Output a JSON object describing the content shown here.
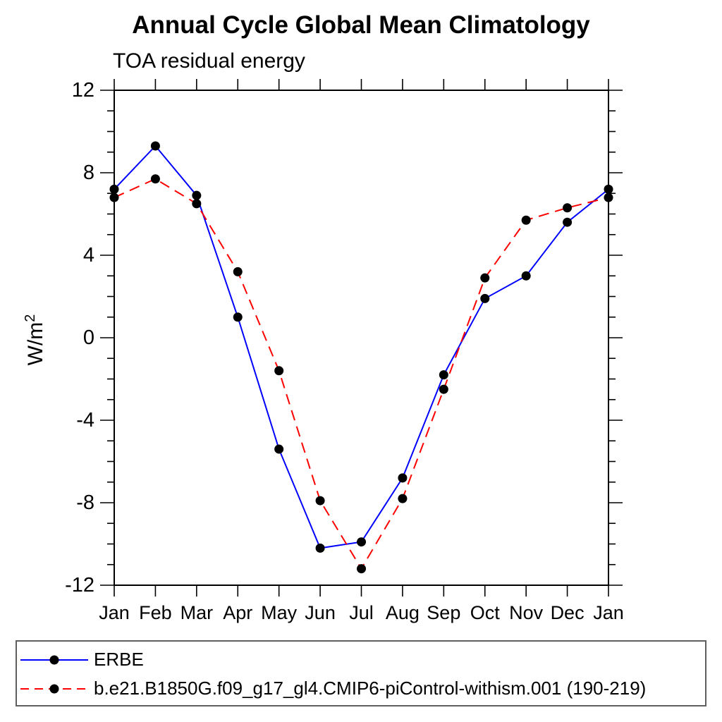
{
  "figure": {
    "background": "#ffffff"
  },
  "chart_data": {
    "type": "line",
    "title": "Annual Cycle Global Mean Climatology",
    "subtitle": "TOA residual energy",
    "ylabel": {
      "base": "W/m",
      "superscript": "2"
    },
    "x_tick_labels": [
      "Jan",
      "Feb",
      "Mar",
      "Apr",
      "May",
      "Jun",
      "Jul",
      "Aug",
      "Sep",
      "Oct",
      "Nov",
      "Dec",
      "Jan"
    ],
    "ylim": [
      -12,
      12
    ],
    "y_major_step": 4,
    "y_minor_step": 1,
    "y_major_tick_labels": [
      "12",
      "8",
      "4",
      "0",
      "-4",
      "-8",
      "-12"
    ],
    "grid": false,
    "legend_position": "bottom-left box",
    "axis_color": "#000000",
    "marker": "filled-circle",
    "marker_color": "#000000",
    "series": [
      {
        "name": "ERBE",
        "color": "#0000ff",
        "line_style": "solid",
        "values": [
          7.2,
          9.3,
          6.9,
          1.0,
          -5.4,
          -10.2,
          -9.9,
          -6.8,
          -1.8,
          1.9,
          3.0,
          5.6,
          7.2
        ]
      },
      {
        "name": "b.e21.B1850G.f09_g17_gl4.CMIP6-piControl-withism.001 (190-219)",
        "color": "#ff0000",
        "line_style": "dashed",
        "values": [
          6.8,
          7.7,
          6.5,
          3.2,
          -1.6,
          -7.9,
          -11.2,
          -7.8,
          -2.5,
          2.9,
          5.7,
          6.3,
          6.8
        ]
      }
    ]
  }
}
